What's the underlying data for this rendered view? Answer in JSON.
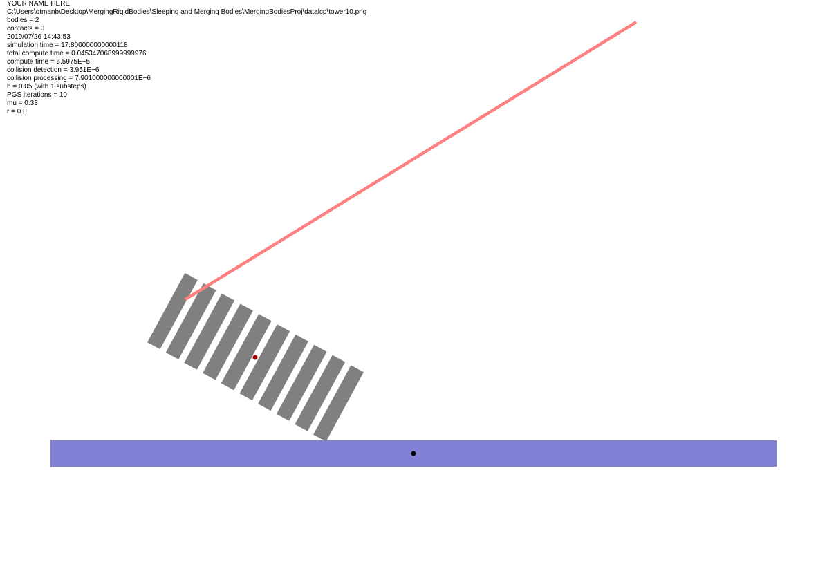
{
  "overlay": {
    "author": "YOUR NAME HERE",
    "file_path": "C:\\Users\\otmanb\\Desktop\\MergingRigidBodies\\Sleeping and Merging Bodies\\MergingBodiesProj\\datalcp\\tower10.png",
    "bodies": "bodies = 2",
    "contacts": "contacts = 0",
    "timestamp": "2019/07/26 14:43:53",
    "simulation_time": "simulation time = 17.800000000000118",
    "total_compute_time": "total compute time = 0.045347068999999976",
    "compute_time": "compute time = 6.5975E−5",
    "collision_detection": "collision detection = 3.951E−6",
    "collision_processing": "collision processing = 7.901000000000001E−6",
    "step_size": "h = 0.05 (with 1 substeps)",
    "pgs_iterations": "PGS iterations = 10",
    "friction": "mu = 0.33",
    "restitution": "r = 0.0"
  },
  "colors": {
    "background": "#ffffff",
    "text": "#000000",
    "block_fill": "#808080",
    "ground_fill": "#8080d4",
    "spring_line": "#ff8080",
    "merged_body_com": "#aa0000",
    "ground_com": "#000000"
  },
  "scene": {
    "merged_block_count": 10
  }
}
